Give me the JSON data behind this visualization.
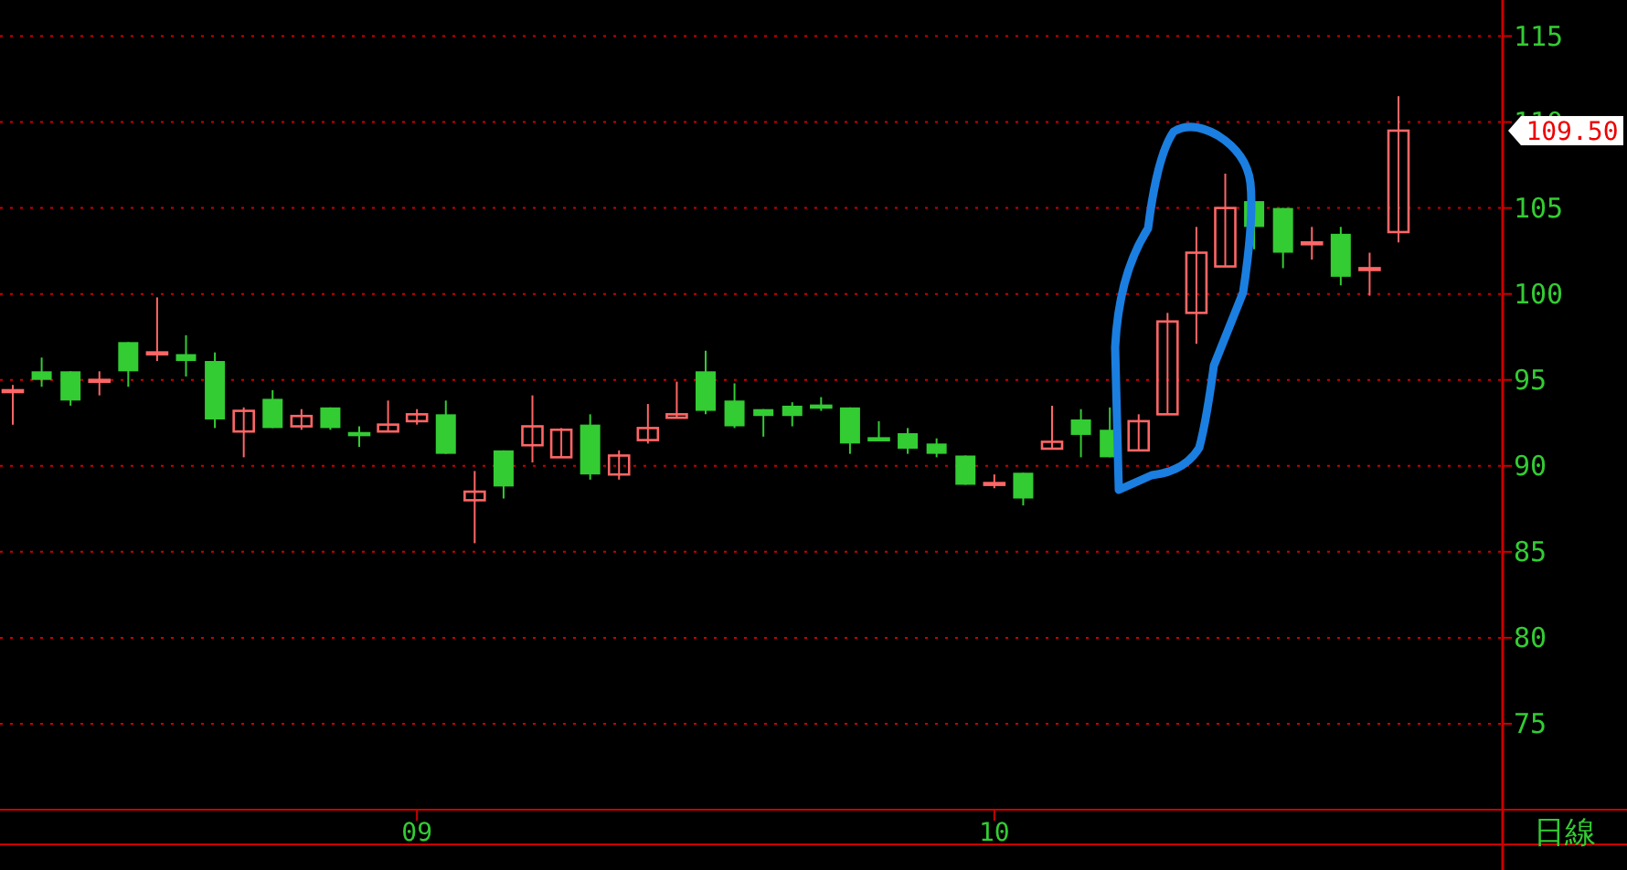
{
  "chart_data": {
    "type": "candlestick",
    "categories": [
      null,
      null,
      null,
      null,
      null,
      null,
      null,
      null,
      null,
      null,
      null,
      null,
      null,
      null,
      "09",
      null,
      null,
      null,
      null,
      null,
      null,
      null,
      null,
      null,
      null,
      null,
      null,
      null,
      null,
      null,
      null,
      null,
      null,
      null,
      "10",
      null,
      null,
      null,
      null,
      null,
      null,
      null,
      null,
      null,
      null,
      null,
      null,
      null,
      null
    ],
    "ohlc": [
      [
        94.4,
        94.7,
        92.4,
        94.4
      ],
      [
        95.5,
        96.3,
        94.6,
        95.0
      ],
      [
        95.5,
        95.5,
        93.5,
        93.8
      ],
      [
        95.0,
        95.5,
        94.1,
        95.0
      ],
      [
        97.2,
        97.2,
        94.6,
        95.5
      ],
      [
        96.6,
        99.8,
        96.1,
        96.6
      ],
      [
        96.5,
        97.6,
        95.2,
        96.1
      ],
      [
        96.1,
        96.6,
        92.2,
        92.7
      ],
      [
        92.0,
        93.4,
        90.5,
        93.2
      ],
      [
        93.9,
        94.4,
        92.2,
        92.2
      ],
      [
        92.3,
        93.3,
        92.1,
        92.9
      ],
      [
        93.4,
        93.4,
        92.1,
        92.2
      ],
      [
        91.9,
        92.3,
        91.1,
        91.9
      ],
      [
        92.0,
        93.8,
        92.0,
        92.4
      ],
      [
        92.6,
        93.3,
        92.4,
        93.0
      ],
      [
        93.0,
        93.8,
        90.7,
        90.7
      ],
      [
        88.0,
        89.7,
        85.5,
        88.5
      ],
      [
        90.9,
        90.9,
        88.1,
        88.8
      ],
      [
        91.2,
        94.1,
        90.2,
        92.3
      ],
      [
        90.5,
        92.2,
        90.5,
        92.1
      ],
      [
        92.4,
        93.0,
        89.2,
        89.5
      ],
      [
        89.5,
        90.9,
        89.2,
        90.6
      ],
      [
        91.5,
        93.6,
        91.3,
        92.2
      ],
      [
        92.8,
        94.9,
        92.8,
        93.0
      ],
      [
        95.5,
        96.7,
        93.0,
        93.2
      ],
      [
        93.8,
        94.8,
        92.2,
        92.3
      ],
      [
        93.3,
        93.3,
        91.7,
        92.9
      ],
      [
        93.5,
        93.7,
        92.3,
        92.9
      ],
      [
        93.5,
        94.0,
        93.2,
        93.5
      ],
      [
        93.4,
        93.4,
        90.7,
        91.3
      ],
      [
        91.6,
        92.6,
        91.6,
        91.6
      ],
      [
        91.9,
        92.2,
        90.7,
        91.0
      ],
      [
        91.3,
        91.6,
        90.5,
        90.7
      ],
      [
        90.6,
        90.6,
        88.9,
        88.9
      ],
      [
        89.0,
        89.5,
        88.7,
        89.0
      ],
      [
        89.6,
        89.6,
        87.7,
        88.1
      ],
      [
        91.0,
        93.5,
        91.0,
        91.4
      ],
      [
        92.7,
        93.3,
        90.5,
        91.8
      ],
      [
        92.1,
        93.4,
        90.5,
        90.5
      ],
      [
        90.9,
        93.0,
        90.9,
        92.6
      ],
      [
        93.0,
        98.9,
        93.0,
        98.4
      ],
      [
        98.9,
        103.9,
        97.1,
        102.4
      ],
      [
        101.6,
        107.0,
        101.6,
        105.0
      ],
      [
        105.4,
        105.4,
        102.6,
        103.9
      ],
      [
        105.0,
        105.0,
        101.5,
        102.4
      ],
      [
        103.0,
        103.9,
        102.0,
        103.0
      ],
      [
        103.5,
        103.9,
        100.5,
        101.0
      ],
      [
        101.5,
        102.4,
        99.9,
        101.5
      ],
      [
        103.6,
        111.5,
        103.0,
        109.5
      ]
    ],
    "colors": [
      "#ff6666",
      "#33cc33",
      "#33cc33",
      "#ff6666",
      "#33cc33",
      "#ff6666",
      "#33cc33",
      "#33cc33",
      "#ff6666",
      "#33cc33",
      "#ff6666",
      "#33cc33",
      "#33cc33",
      "#ff6666",
      "#ff6666",
      "#33cc33",
      "#ff6666",
      "#33cc33",
      "#ff6666",
      "#ff6666",
      "#33cc33",
      "#ff6666",
      "#ff6666",
      "#ff6666",
      "#33cc33",
      "#33cc33",
      "#33cc33",
      "#33cc33",
      "#33cc33",
      "#33cc33",
      "#33cc33",
      "#33cc33",
      "#33cc33",
      "#33cc33",
      "#ff6666",
      "#33cc33",
      "#ff6666",
      "#33cc33",
      "#33cc33",
      "#ff6666",
      "#ff6666",
      "#ff6666",
      "#ff6666",
      "#33cc33",
      "#33cc33",
      "#ff6666",
      "#33cc33",
      "#ff6666",
      "#ff6666"
    ],
    "ylim": [
      70,
      117.1
    ],
    "yticks": [
      75,
      80,
      85,
      90,
      95,
      100,
      105,
      110,
      115
    ],
    "grid": "y",
    "annotations": [
      "109.50",
      "日線"
    ]
  }
}
